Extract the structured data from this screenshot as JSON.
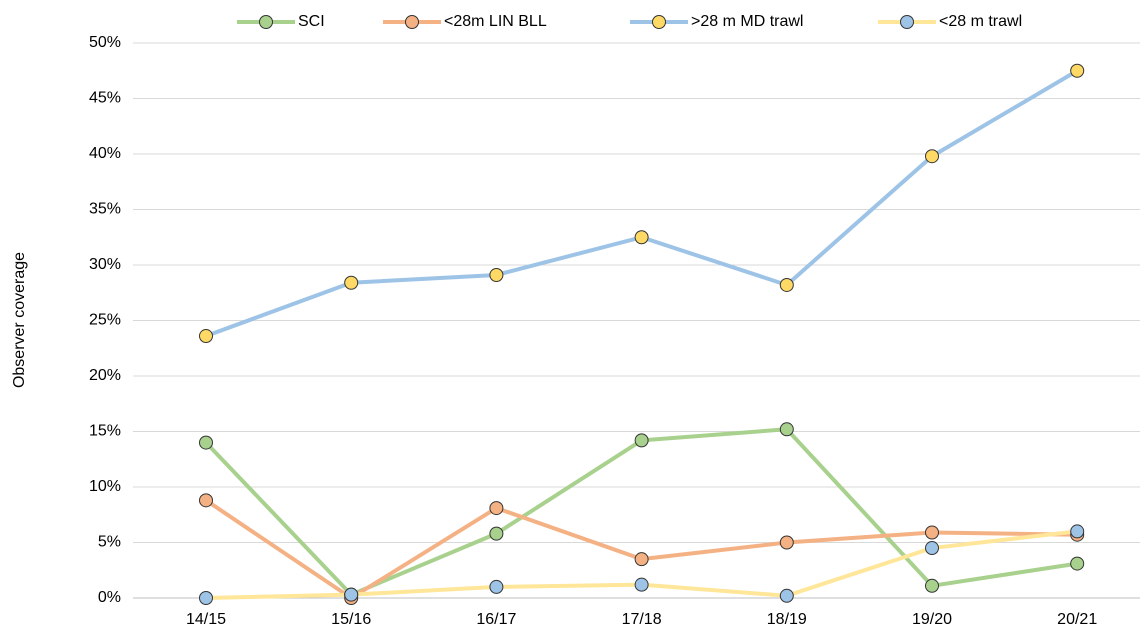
{
  "chart_data": {
    "type": "line",
    "y_label": "Observer coverage",
    "categories": [
      "14/15",
      "15/16",
      "16/17",
      "17/18",
      "18/19",
      "19/20",
      "20/21"
    ],
    "series": [
      {
        "name": "SCI",
        "color": "#a9d18e",
        "marker_color": "#a9d18e",
        "values": [
          14.0,
          0.3,
          5.8,
          14.2,
          15.2,
          1.1,
          3.1
        ]
      },
      {
        "name": "<28m LIN BLL",
        "color": "#f4b183",
        "marker_color": "#f4b183",
        "values": [
          8.8,
          0,
          8.1,
          3.5,
          5.0,
          5.9,
          5.7
        ]
      },
      {
        "name": ">28 m MD trawl",
        "color": "#9dc3e6",
        "marker_color": "#ffd966",
        "values": [
          23.6,
          28.4,
          29.1,
          32.5,
          28.2,
          39.8,
          47.5
        ]
      },
      {
        "name": "<28 m trawl",
        "color": "#ffe699",
        "marker_color": "#9dc3e6",
        "values": [
          0,
          0.3,
          1.0,
          1.2,
          0.2,
          4.5,
          6.0
        ]
      }
    ],
    "ylim": [
      0,
      50
    ],
    "yticks": [
      {
        "value": 0,
        "label": "0%"
      },
      {
        "value": 5,
        "label": "5%"
      },
      {
        "value": 10,
        "label": "10%"
      },
      {
        "value": 15,
        "label": "15%"
      },
      {
        "value": 20,
        "label": "20%"
      },
      {
        "value": 25,
        "label": "25%"
      },
      {
        "value": 30,
        "label": "30%"
      },
      {
        "value": 35,
        "label": "35%"
      },
      {
        "value": 40,
        "label": "40%"
      },
      {
        "value": 45,
        "label": "45%"
      },
      {
        "value": 50,
        "label": "50%"
      }
    ],
    "grid": true,
    "legend": "top"
  }
}
